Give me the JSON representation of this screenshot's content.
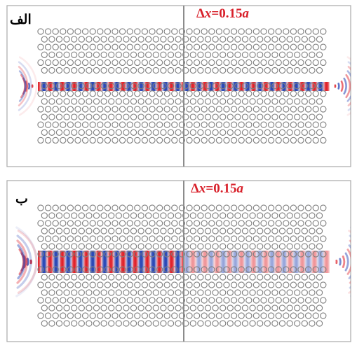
{
  "colors": {
    "field_positive": "#e0232c",
    "field_negative": "#2a47b5",
    "hole_stroke": "#7f7f7f",
    "frame": "#a9a9a9",
    "divider": "#8c8c8c",
    "shift_label": "#d8202a"
  },
  "panels": [
    {
      "id": "a",
      "label": "الف",
      "shift_label": {
        "delta": "Δ",
        "var": "x",
        "rest": "=0.15",
        "unit": "a"
      },
      "waveguide_left_amplitude": 1.0,
      "waveguide_right_amplitude": 1.0,
      "left_emission": "strong",
      "right_emission": "strong"
    },
    {
      "id": "b",
      "label": "ب",
      "shift_label": {
        "delta": "Δ",
        "var": "x",
        "rest": "=0.15",
        "unit": "a"
      },
      "waveguide_left_amplitude": 1.0,
      "waveguide_right_amplitude": 0.35,
      "left_emission": "strong",
      "right_emission": "strong"
    }
  ]
}
